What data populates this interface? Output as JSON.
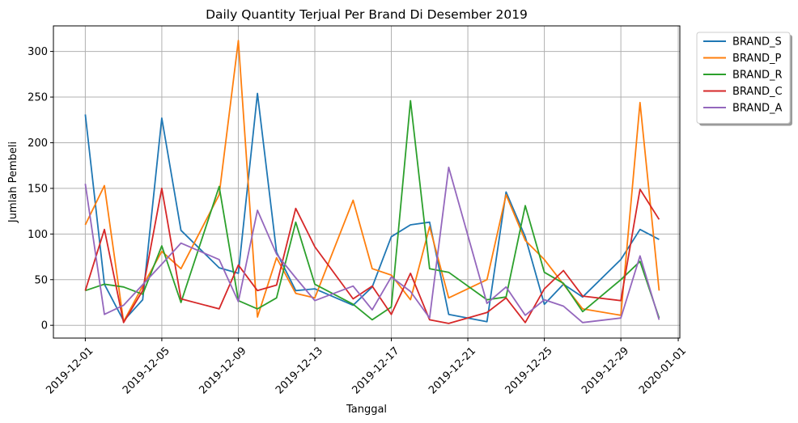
{
  "chart_data": {
    "type": "line",
    "title": "Daily Quantity Terjual Per Brand Di Desember 2019",
    "xlabel": "Tanggal",
    "ylabel": "Jumlah Pembeli",
    "xlim": [
      "2019-11-29T08:00",
      "2020-01-01T02:00"
    ],
    "ylim": [
      -14,
      328
    ],
    "x_ticks": [
      "2019-12-01",
      "2019-12-05",
      "2019-12-09",
      "2019-12-13",
      "2019-12-17",
      "2019-12-21",
      "2019-12-25",
      "2019-12-29",
      "2020-01-01"
    ],
    "y_ticks": [
      0,
      50,
      100,
      150,
      200,
      250,
      300
    ],
    "grid": true,
    "legend_position": "outside-top-right",
    "x": [
      "2019-12-01",
      "2019-12-02",
      "2019-12-03",
      "2019-12-04",
      "2019-12-05",
      "2019-12-06",
      "2019-12-08",
      "2019-12-09",
      "2019-12-10",
      "2019-12-11",
      "2019-12-12",
      "2019-12-13",
      "2019-12-15",
      "2019-12-16",
      "2019-12-17",
      "2019-12-18",
      "2019-12-19",
      "2019-12-20",
      "2019-12-22",
      "2019-12-23",
      "2019-12-24",
      "2019-12-25",
      "2019-12-26",
      "2019-12-27",
      "2019-12-29",
      "2019-12-30",
      "2019-12-31"
    ],
    "series": [
      {
        "name": "BRAND_S",
        "color": "#1f77b4",
        "points": [
          [
            "2019-12-01",
            231
          ],
          [
            "2019-12-02",
            45
          ],
          [
            "2019-12-03",
            5
          ],
          [
            "2019-12-04",
            28
          ],
          [
            "2019-12-05",
            227
          ],
          [
            "2019-12-06",
            104
          ],
          [
            "2019-12-08",
            63
          ],
          [
            "2019-12-09",
            57
          ],
          [
            "2019-12-10",
            254
          ],
          [
            "2019-12-11",
            80
          ],
          [
            "2019-12-12",
            38
          ],
          [
            "2019-12-13",
            40
          ],
          [
            "2019-12-15",
            22
          ],
          [
            "2019-12-16",
            42
          ],
          [
            "2019-12-17",
            97
          ],
          [
            "2019-12-18",
            110
          ],
          [
            "2019-12-19",
            113
          ],
          [
            "2019-12-20",
            12
          ],
          [
            "2019-12-22",
            4
          ],
          [
            "2019-12-23",
            146
          ],
          [
            "2019-12-24",
            97
          ],
          [
            "2019-12-25",
            23
          ],
          [
            "2019-12-26",
            45
          ],
          [
            "2019-12-27",
            31
          ],
          [
            "2019-12-29",
            72
          ],
          [
            "2019-12-30",
            105
          ],
          [
            "2019-12-31",
            94
          ]
        ]
      },
      {
        "name": "BRAND_P",
        "color": "#ff7f0e",
        "points": [
          [
            "2019-12-01",
            110
          ],
          [
            "2019-12-02",
            153
          ],
          [
            "2019-12-03",
            4
          ],
          [
            "2019-12-04",
            43
          ],
          [
            "2019-12-05",
            81
          ],
          [
            "2019-12-06",
            62
          ],
          [
            "2019-12-08",
            143
          ],
          [
            "2019-12-09",
            312
          ],
          [
            "2019-12-10",
            9
          ],
          [
            "2019-12-11",
            74
          ],
          [
            "2019-12-12",
            35
          ],
          [
            "2019-12-13",
            30
          ],
          [
            "2019-12-15",
            137
          ],
          [
            "2019-12-16",
            62
          ],
          [
            "2019-12-17",
            55
          ],
          [
            "2019-12-18",
            28
          ],
          [
            "2019-12-19",
            108
          ],
          [
            "2019-12-20",
            30
          ],
          [
            "2019-12-22",
            50
          ],
          [
            "2019-12-23",
            143
          ],
          [
            "2019-12-24",
            93
          ],
          [
            "2019-12-25",
            72
          ],
          [
            "2019-12-26",
            45
          ],
          [
            "2019-12-27",
            18
          ],
          [
            "2019-12-29",
            11
          ],
          [
            "2019-12-30",
            244
          ],
          [
            "2019-12-31",
            38
          ]
        ]
      },
      {
        "name": "BRAND_R",
        "color": "#2ca02c",
        "points": [
          [
            "2019-12-01",
            38
          ],
          [
            "2019-12-02",
            45
          ],
          [
            "2019-12-03",
            42
          ],
          [
            "2019-12-04",
            34
          ],
          [
            "2019-12-05",
            87
          ],
          [
            "2019-12-06",
            25
          ],
          [
            "2019-12-08",
            152
          ],
          [
            "2019-12-09",
            27
          ],
          [
            "2019-12-10",
            18
          ],
          [
            "2019-12-11",
            30
          ],
          [
            "2019-12-12",
            113
          ],
          [
            "2019-12-13",
            45
          ],
          [
            "2019-12-15",
            23
          ],
          [
            "2019-12-16",
            6
          ],
          [
            "2019-12-17",
            20
          ],
          [
            "2019-12-18",
            246
          ],
          [
            "2019-12-19",
            62
          ],
          [
            "2019-12-20",
            58
          ],
          [
            "2019-12-22",
            28
          ],
          [
            "2019-12-23",
            31
          ],
          [
            "2019-12-24",
            131
          ],
          [
            "2019-12-25",
            58
          ],
          [
            "2019-12-26",
            46
          ],
          [
            "2019-12-27",
            15
          ],
          [
            "2019-12-29",
            50
          ],
          [
            "2019-12-30",
            70
          ],
          [
            "2019-12-31",
            8
          ]
        ]
      },
      {
        "name": "BRAND_C",
        "color": "#d62728",
        "points": [
          [
            "2019-12-01",
            38
          ],
          [
            "2019-12-02",
            105
          ],
          [
            "2019-12-03",
            3
          ],
          [
            "2019-12-04",
            38
          ],
          [
            "2019-12-05",
            150
          ],
          [
            "2019-12-06",
            29
          ],
          [
            "2019-12-08",
            18
          ],
          [
            "2019-12-09",
            66
          ],
          [
            "2019-12-10",
            38
          ],
          [
            "2019-12-11",
            44
          ],
          [
            "2019-12-12",
            128
          ],
          [
            "2019-12-13",
            86
          ],
          [
            "2019-12-15",
            29
          ],
          [
            "2019-12-16",
            43
          ],
          [
            "2019-12-17",
            12
          ],
          [
            "2019-12-18",
            57
          ],
          [
            "2019-12-19",
            6
          ],
          [
            "2019-12-20",
            2
          ],
          [
            "2019-12-22",
            14
          ],
          [
            "2019-12-23",
            30
          ],
          [
            "2019-12-24",
            3
          ],
          [
            "2019-12-25",
            40
          ],
          [
            "2019-12-26",
            60
          ],
          [
            "2019-12-27",
            32
          ],
          [
            "2019-12-29",
            27
          ],
          [
            "2019-12-30",
            149
          ],
          [
            "2019-12-31",
            116
          ]
        ]
      },
      {
        "name": "BRAND_A",
        "color": "#9467bd",
        "points": [
          [
            "2019-12-01",
            155
          ],
          [
            "2019-12-02",
            12
          ],
          [
            "2019-12-03",
            22
          ],
          [
            "2019-12-05",
            67
          ],
          [
            "2019-12-06",
            90
          ],
          [
            "2019-12-08",
            72
          ],
          [
            "2019-12-09",
            26
          ],
          [
            "2019-12-10",
            126
          ],
          [
            "2019-12-11",
            78
          ],
          [
            "2019-12-12",
            52
          ],
          [
            "2019-12-13",
            27
          ],
          [
            "2019-12-15",
            43
          ],
          [
            "2019-12-16",
            17
          ],
          [
            "2019-12-17",
            53
          ],
          [
            "2019-12-18",
            37
          ],
          [
            "2019-12-19",
            8
          ],
          [
            "2019-12-20",
            173
          ],
          [
            "2019-12-22",
            24
          ],
          [
            "2019-12-23",
            42
          ],
          [
            "2019-12-24",
            11
          ],
          [
            "2019-12-25",
            28
          ],
          [
            "2019-12-26",
            21
          ],
          [
            "2019-12-27",
            3
          ],
          [
            "2019-12-29",
            8
          ],
          [
            "2019-12-30",
            76
          ],
          [
            "2019-12-31",
            6
          ]
        ]
      }
    ]
  }
}
